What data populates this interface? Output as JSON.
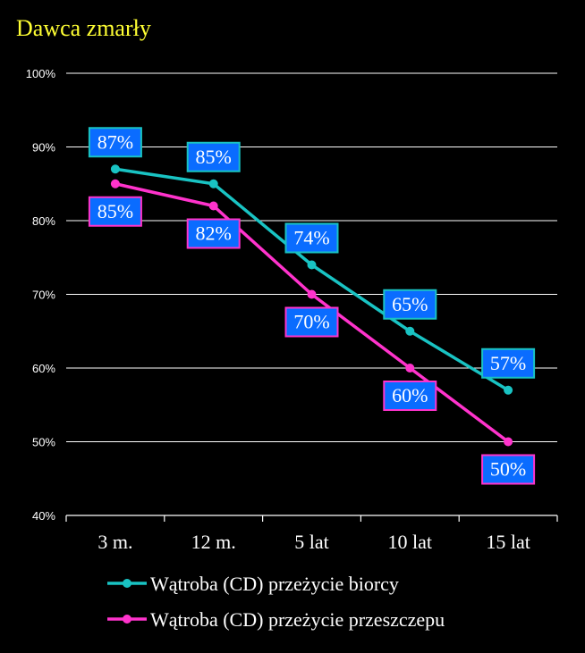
{
  "chart_data": {
    "type": "line",
    "title": "Dawca  zmarły",
    "categories": [
      "3 m.",
      "12 m.",
      "5 lat",
      "10 lat",
      "15 lat"
    ],
    "ylim": [
      40,
      100
    ],
    "yticks": [
      40,
      50,
      60,
      70,
      80,
      90,
      100
    ],
    "ytick_labels": [
      "40%",
      "50%",
      "60%",
      "70%",
      "80%",
      "90%",
      "100%"
    ],
    "grid": true,
    "legend_position": "bottom",
    "series": [
      {
        "name": "Wątroba (CD) przeżycie biorcy",
        "values": [
          87,
          85,
          74,
          65,
          57
        ],
        "labels": [
          "87%",
          "85%",
          "74%",
          "65%",
          "57%"
        ],
        "label_placement": "above",
        "color": "#19c3c3",
        "label_border": "#19c3c3"
      },
      {
        "name": "Wątroba (CD) przeżycie przeszczepu",
        "values": [
          85,
          82,
          70,
          60,
          50
        ],
        "labels": [
          "85%",
          "82%",
          "70%",
          "60%",
          "50%"
        ],
        "label_placement": "below",
        "color": "#ff33cc",
        "label_border": "#ff33cc"
      }
    ],
    "label_box_fill": "#0a6cff"
  }
}
